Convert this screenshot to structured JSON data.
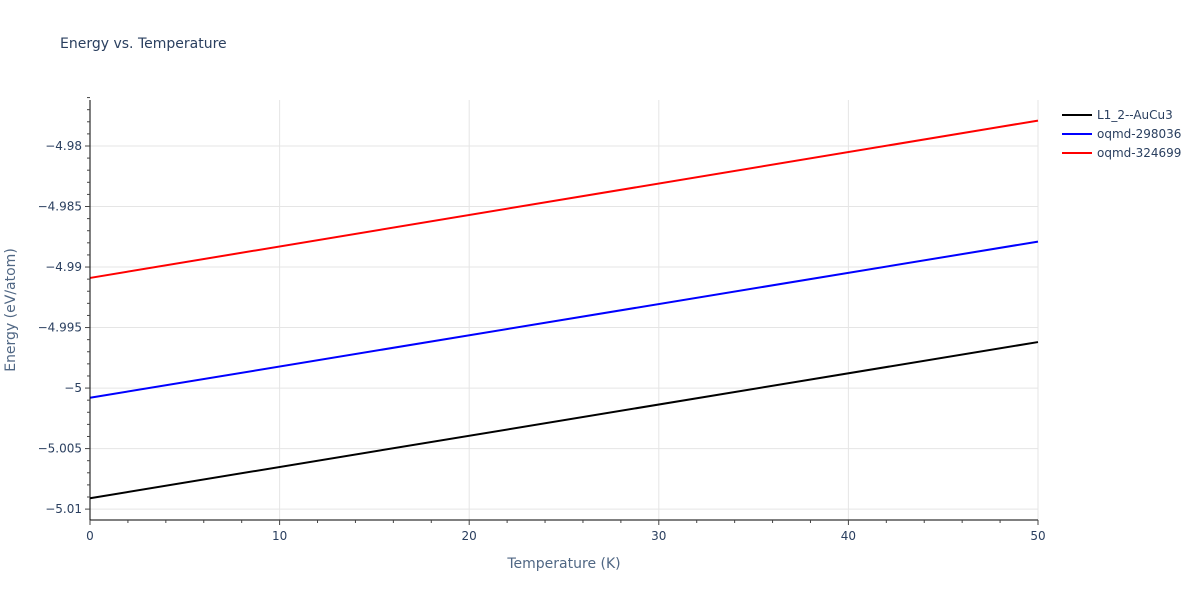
{
  "title": "Energy vs. Temperature",
  "chart_data": {
    "type": "line",
    "title": "Energy vs. Temperature",
    "xlabel": "Temperature (K)",
    "ylabel": "Energy (eV/atom)",
    "xlim": [
      0,
      50
    ],
    "ylim": [
      -5.0109,
      -4.9762
    ],
    "x_ticks": [
      0,
      10,
      20,
      30,
      40,
      50
    ],
    "x_tick_labels": [
      "0",
      "10",
      "20",
      "30",
      "40",
      "50"
    ],
    "y_ticks": [
      -4.98,
      -4.985,
      -4.99,
      -4.995,
      -5.0,
      -5.005,
      -5.01
    ],
    "y_tick_labels": [
      "−4.98",
      "−4.985",
      "−4.99",
      "−4.995",
      "−5",
      "−5.005",
      "−5.01"
    ],
    "grid": true,
    "legend_position": "right",
    "series": [
      {
        "name": "L1_2--AuCu3",
        "color": "#000000",
        "x": [
          0,
          50
        ],
        "values": [
          -5.0091,
          -4.9962
        ]
      },
      {
        "name": "oqmd-298036",
        "color": "#0000ff",
        "x": [
          0,
          50
        ],
        "values": [
          -5.0008,
          -4.9879
        ]
      },
      {
        "name": "oqmd-324699",
        "color": "#ff0000",
        "x": [
          0,
          50
        ],
        "values": [
          -4.9909,
          -4.9779
        ]
      }
    ]
  },
  "legend": {
    "items": [
      {
        "label": "L1_2--AuCu3",
        "color": "#000000"
      },
      {
        "label": "oqmd-298036",
        "color": "#0000ff"
      },
      {
        "label": "oqmd-324699",
        "color": "#ff0000"
      }
    ]
  }
}
